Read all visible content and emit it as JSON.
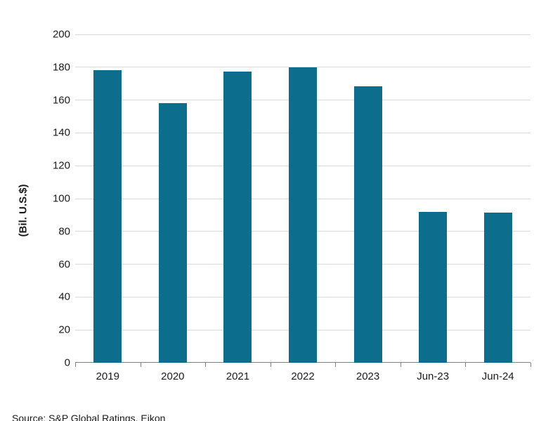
{
  "chart_data": {
    "type": "bar",
    "categories": [
      "2019",
      "2020",
      "2021",
      "2022",
      "2023",
      "Jun-23",
      "Jun-24"
    ],
    "values": [
      178,
      158,
      177.5,
      180,
      168.5,
      92,
      91.5
    ],
    "title": "",
    "xlabel": "",
    "ylabel": "(Bil. U.S.$)",
    "ylim": [
      0,
      200
    ],
    "ytick_step": 20,
    "grid": true,
    "legend": false,
    "colors": {
      "bar": "#0c6e8c",
      "gridline": "#d9d9d9",
      "axis": "#808080",
      "text": "#1a1a1a"
    }
  },
  "footer": {
    "source": "Source: S&P Global Ratings, Eikon"
  }
}
